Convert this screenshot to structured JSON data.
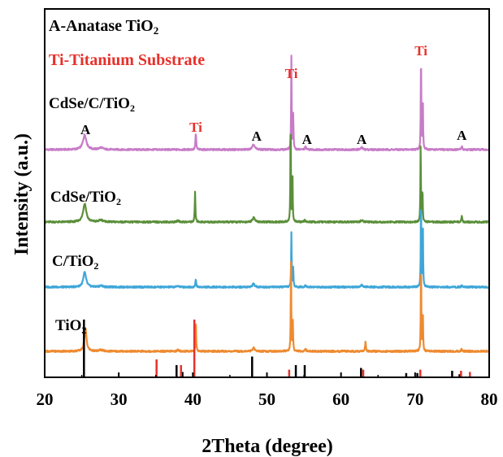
{
  "chart_data": {
    "type": "line",
    "xlabel": "2Theta (degree)",
    "ylabel": "Intensity (a.u.)",
    "xlim": [
      20,
      80
    ],
    "xticks": [
      20,
      30,
      40,
      50,
      60,
      70,
      80
    ],
    "yticks_shown": false,
    "legend": {
      "anatase": {
        "text": "A-Anatase TiO",
        "sub": "2",
        "color": "#000000"
      },
      "titanium": {
        "text": "Ti-Titanium Substrate",
        "color": "#e8302a"
      }
    },
    "series": [
      {
        "name": "CdSe/C/TiO₂",
        "label_main": "CdSe/C/TiO",
        "label_sub": "2",
        "color": "#c77cc7",
        "baseline": 0.0,
        "peaks": [
          {
            "x": 25.4,
            "h": 0.22,
            "w": 0.55
          },
          {
            "x": 27.6,
            "h": 0.03,
            "w": 0.6
          },
          {
            "x": 40.4,
            "h": 0.25,
            "w": 0.12
          },
          {
            "x": 48.2,
            "h": 0.07,
            "w": 0.4
          },
          {
            "x": 53.3,
            "h": 1.4,
            "w": 0.08
          },
          {
            "x": 53.55,
            "h": 0.55,
            "w": 0.08
          },
          {
            "x": 55.2,
            "h": 0.04,
            "w": 0.2
          },
          {
            "x": 62.8,
            "h": 0.03,
            "w": 0.3
          },
          {
            "x": 70.8,
            "h": 1.5,
            "w": 0.08
          },
          {
            "x": 71.05,
            "h": 0.7,
            "w": 0.08
          },
          {
            "x": 76.3,
            "h": 0.05,
            "w": 0.15
          }
        ]
      },
      {
        "name": "CdSe/TiO₂",
        "label_main": "CdSe/TiO",
        "label_sub": "2",
        "color": "#5b8f3a",
        "baseline": 0.0,
        "peaks": [
          {
            "x": 25.4,
            "h": 0.28,
            "w": 0.5
          },
          {
            "x": 27.6,
            "h": 0.03,
            "w": 0.6
          },
          {
            "x": 38.0,
            "h": 0.02,
            "w": 0.3
          },
          {
            "x": 40.3,
            "h": 0.45,
            "w": 0.1
          },
          {
            "x": 48.2,
            "h": 0.07,
            "w": 0.35
          },
          {
            "x": 53.2,
            "h": 1.6,
            "w": 0.08
          },
          {
            "x": 53.45,
            "h": 0.7,
            "w": 0.08
          },
          {
            "x": 55.1,
            "h": 0.03,
            "w": 0.2
          },
          {
            "x": 62.8,
            "h": 0.03,
            "w": 0.3
          },
          {
            "x": 70.75,
            "h": 1.2,
            "w": 0.08
          },
          {
            "x": 71.0,
            "h": 0.5,
            "w": 0.08
          },
          {
            "x": 76.3,
            "h": 0.09,
            "w": 0.12
          }
        ]
      },
      {
        "name": "C/TiO₂",
        "label_main": "C/TiO",
        "label_sub": "2",
        "color": "#3ea6d8",
        "baseline": 0.0,
        "peaks": [
          {
            "x": 25.4,
            "h": 0.22,
            "w": 0.45
          },
          {
            "x": 27.6,
            "h": 0.02,
            "w": 0.6
          },
          {
            "x": 38.0,
            "h": 0.02,
            "w": 0.3
          },
          {
            "x": 40.4,
            "h": 0.12,
            "w": 0.12
          },
          {
            "x": 48.2,
            "h": 0.05,
            "w": 0.35
          },
          {
            "x": 53.3,
            "h": 0.82,
            "w": 0.08
          },
          {
            "x": 53.55,
            "h": 0.3,
            "w": 0.08
          },
          {
            "x": 55.2,
            "h": 0.03,
            "w": 0.2
          },
          {
            "x": 62.8,
            "h": 0.03,
            "w": 0.3
          },
          {
            "x": 70.8,
            "h": 1.4,
            "w": 0.08
          },
          {
            "x": 71.05,
            "h": 0.9,
            "w": 0.08
          },
          {
            "x": 76.3,
            "h": 0.02,
            "w": 0.15
          }
        ]
      },
      {
        "name": "TiO₂",
        "label_main": "TiO",
        "label_sub": "2",
        "color": "#ee8a2f",
        "baseline": 0.0,
        "peaks": [
          {
            "x": 25.5,
            "h": 0.34,
            "w": 0.35
          },
          {
            "x": 27.6,
            "h": 0.02,
            "w": 0.6
          },
          {
            "x": 38.0,
            "h": 0.02,
            "w": 0.3
          },
          {
            "x": 40.4,
            "h": 0.46,
            "w": 0.1
          },
          {
            "x": 48.2,
            "h": 0.05,
            "w": 0.35
          },
          {
            "x": 53.25,
            "h": 1.42,
            "w": 0.08
          },
          {
            "x": 53.5,
            "h": 0.45,
            "w": 0.08
          },
          {
            "x": 55.2,
            "h": 0.03,
            "w": 0.2
          },
          {
            "x": 63.3,
            "h": 0.14,
            "w": 0.12
          },
          {
            "x": 70.8,
            "h": 1.42,
            "w": 0.08
          },
          {
            "x": 71.05,
            "h": 0.55,
            "w": 0.08
          },
          {
            "x": 76.3,
            "h": 0.04,
            "w": 0.15
          }
        ]
      }
    ],
    "peak_labels": [
      {
        "text": "A",
        "x": 25.5,
        "color": "#000000",
        "series": 0
      },
      {
        "text": "Ti",
        "x": 40.4,
        "color": "#e8302a",
        "series": 0
      },
      {
        "text": "A",
        "x": 48.6,
        "color": "#000000",
        "series": 0
      },
      {
        "text": "Ti",
        "x": 53.3,
        "color": "#e8302a",
        "series": 0
      },
      {
        "text": "A",
        "x": 55.4,
        "color": "#000000",
        "series": 0
      },
      {
        "text": "A",
        "x": 62.8,
        "color": "#000000",
        "series": 0
      },
      {
        "text": "Ti",
        "x": 70.8,
        "color": "#e8302a",
        "series": 0
      },
      {
        "text": "A",
        "x": 76.3,
        "color": "#000000",
        "series": 0
      }
    ],
    "reference_sticks": {
      "anatase": {
        "color": "#000000",
        "sticks": [
          {
            "x": 25.3,
            "h": 1.0
          },
          {
            "x": 37.8,
            "h": 0.2
          },
          {
            "x": 38.6,
            "h": 0.08
          },
          {
            "x": 48.0,
            "h": 0.35
          },
          {
            "x": 53.9,
            "h": 0.2
          },
          {
            "x": 55.1,
            "h": 0.2
          },
          {
            "x": 62.7,
            "h": 0.15
          },
          {
            "x": 68.8,
            "h": 0.06
          },
          {
            "x": 70.3,
            "h": 0.06
          },
          {
            "x": 75.0,
            "h": 0.1
          },
          {
            "x": 76.0,
            "h": 0.04
          }
        ]
      },
      "titanium": {
        "color": "#e8302a",
        "sticks": [
          {
            "x": 35.1,
            "h": 0.3
          },
          {
            "x": 38.4,
            "h": 0.2
          },
          {
            "x": 40.2,
            "h": 1.0
          },
          {
            "x": 53.0,
            "h": 0.12
          },
          {
            "x": 63.0,
            "h": 0.12
          },
          {
            "x": 70.7,
            "h": 0.12
          },
          {
            "x": 76.2,
            "h": 0.1
          },
          {
            "x": 77.4,
            "h": 0.08
          }
        ]
      }
    }
  }
}
